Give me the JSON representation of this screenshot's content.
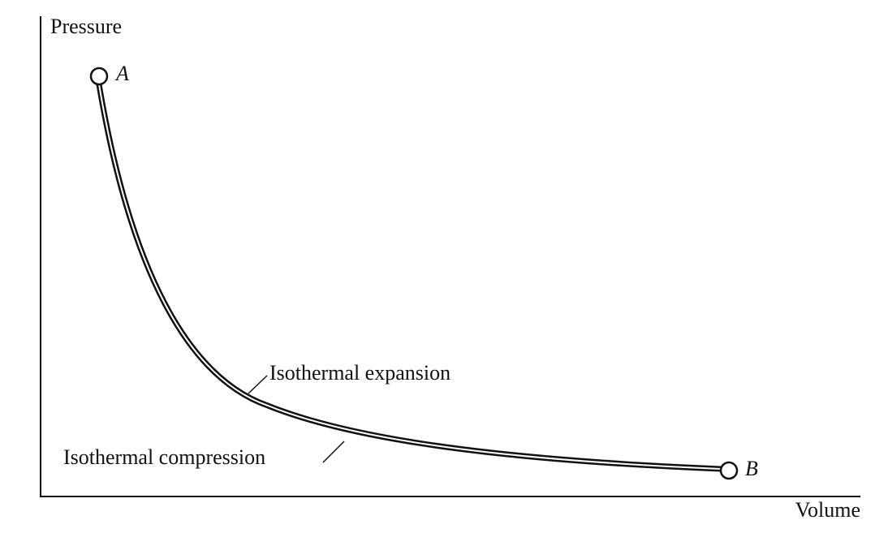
{
  "axes": {
    "y_label": "Pressure",
    "x_label": "Volume"
  },
  "points": [
    {
      "label": "A"
    },
    {
      "label": "B"
    }
  ],
  "curve_labels": {
    "expansion": "Isothermal expansion",
    "compression": "Isothermal compression"
  }
}
